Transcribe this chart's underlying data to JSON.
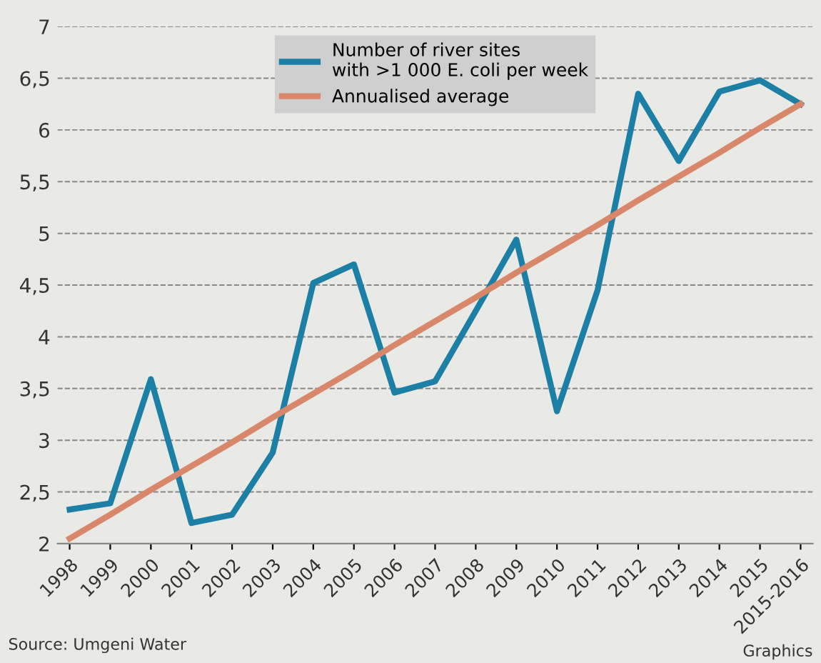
{
  "chart_data": {
    "type": "line",
    "categories": [
      "1998",
      "1999",
      "2000",
      "2001",
      "2002",
      "2003",
      "2004",
      "2005",
      "2006",
      "2007",
      "2008",
      "2009",
      "2010",
      "2011",
      "2012",
      "2013",
      "2014",
      "2015",
      "2015-2016"
    ],
    "series": [
      {
        "name": "Number of river sites\nwith >1 000 E. coli per week",
        "color": "#1b7fa6",
        "values": [
          2.33,
          2.39,
          3.59,
          2.2,
          2.28,
          2.88,
          4.52,
          4.7,
          3.46,
          3.57,
          4.25,
          4.94,
          3.28,
          4.45,
          6.35,
          5.7,
          6.37,
          6.48,
          6.25
        ]
      },
      {
        "name": "Annualised average",
        "color": "#d9876a",
        "values": [
          2.05,
          2.28,
          2.52,
          2.75,
          2.98,
          3.22,
          3.45,
          3.68,
          3.92,
          4.15,
          4.38,
          4.62,
          4.85,
          5.08,
          5.32,
          5.55,
          5.78,
          6.02,
          6.25
        ]
      }
    ],
    "ylim": [
      2,
      7
    ],
    "yticks": [
      2,
      {
        "value": 2.5,
        "label": "2,5"
      },
      3,
      {
        "value": 3.5,
        "label": "3,5"
      },
      4,
      {
        "value": 4.5,
        "label": "4,5"
      },
      5,
      {
        "value": 5.5,
        "label": "5,5"
      },
      6,
      {
        "value": 6.5,
        "label": "6,5"
      },
      7
    ],
    "grid": "y",
    "legend": "top",
    "annotations": [
      "Source: Umgeni Water",
      "Graphics"
    ]
  }
}
